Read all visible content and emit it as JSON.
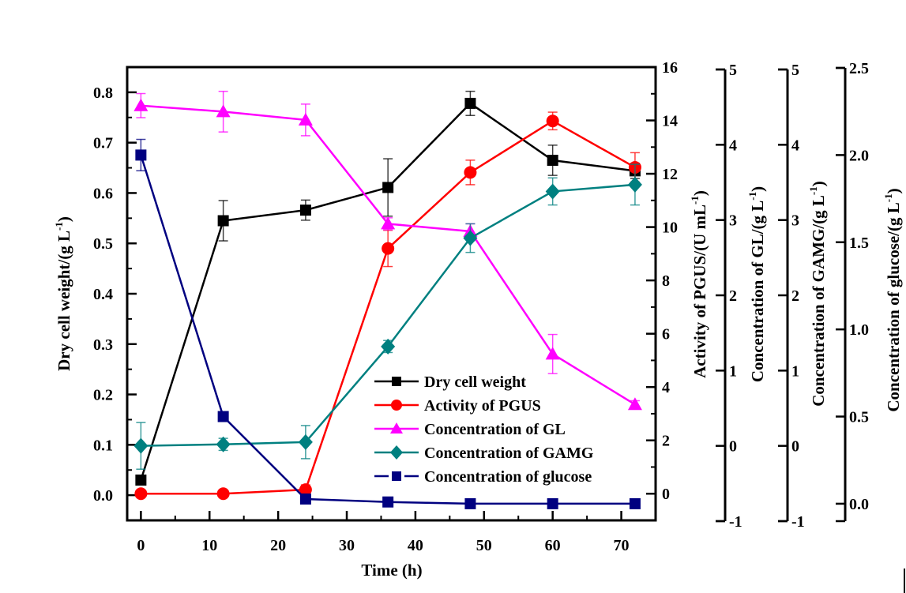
{
  "chart_data": {
    "type": "line",
    "title": "",
    "xlabel": "Time (h)",
    "xlim": [
      -2,
      75
    ],
    "xticks": [
      0,
      10,
      20,
      30,
      40,
      50,
      60,
      70
    ],
    "x": [
      0,
      12,
      24,
      36,
      48,
      60,
      72
    ],
    "grid": false,
    "legend_position": "bottom-center",
    "axes": [
      {
        "id": "dcw",
        "label": "Dry cell weight/(g L",
        "label_sup": "-1",
        "label_end": ")",
        "side": "left",
        "ylim": [
          -0.05,
          0.85
        ],
        "ticks": [
          "0.0",
          "0.1",
          "0.2",
          "0.3",
          "0.4",
          "0.5",
          "0.6",
          "0.7",
          "0.8"
        ],
        "tick_values": [
          0,
          0.1,
          0.2,
          0.3,
          0.4,
          0.5,
          0.6,
          0.7,
          0.8
        ],
        "minor": [
          0.05,
          0.15,
          0.25,
          0.35,
          0.45,
          0.55,
          0.65,
          0.75
        ]
      },
      {
        "id": "pgus",
        "label": "Activity of PGUS/(U mL",
        "label_sup": "-1",
        "label_end": ")",
        "side": "right",
        "ylim": [
          -1,
          16
        ],
        "ticks": [
          "0",
          "2",
          "4",
          "6",
          "8",
          "10",
          "12",
          "14",
          "16"
        ],
        "tick_values": [
          0,
          2,
          4,
          6,
          8,
          10,
          12,
          14,
          16
        ],
        "minor": [
          1,
          3,
          5,
          7,
          9,
          11,
          13,
          15
        ]
      },
      {
        "id": "gl",
        "label": "Concentration of GL/(g L",
        "label_sup": "-1",
        "label_end": ")",
        "side": "right-offset-1",
        "ylim": [
          -1,
          5
        ],
        "ticks": [
          "-1",
          "0",
          "1",
          "2",
          "3",
          "4",
          "5"
        ],
        "tick_values": [
          -1,
          0,
          1,
          2,
          3,
          4,
          5
        ],
        "minor": []
      },
      {
        "id": "gamg",
        "label": "Concentration of GAMG/(g L",
        "label_sup": "-1",
        "label_end": ")",
        "side": "right-offset-2",
        "ylim": [
          -1,
          5
        ],
        "ticks": [
          "-1",
          "0",
          "1",
          "2",
          "3",
          "4",
          "5"
        ],
        "tick_values": [
          -1,
          0,
          1,
          2,
          3,
          4,
          5
        ],
        "minor": []
      },
      {
        "id": "glucose",
        "label": "Concentration of glucose/(g L",
        "label_sup": "-1",
        "label_end": ")",
        "side": "right-offset-3",
        "ylim": [
          -0.1,
          2.5
        ],
        "ticks": [
          "0.0",
          "0.5",
          "1.0",
          "1.5",
          "2.0",
          "2.5"
        ],
        "tick_values": [
          0,
          0.5,
          1.0,
          1.5,
          2.0,
          2.5
        ],
        "minor": []
      }
    ],
    "series": [
      {
        "name": "Dry cell weight",
        "axis": "dcw",
        "color": "#000000",
        "marker": "square",
        "values": [
          0.03,
          0.545,
          0.566,
          0.611,
          0.778,
          0.665,
          0.644
        ],
        "errors": [
          0.0,
          0.04,
          0.02,
          0.057,
          0.024,
          0.03,
          0.015
        ]
      },
      {
        "name": "Activity of PGUS",
        "axis": "pgus",
        "color": "#ff0000",
        "marker": "circle",
        "values": [
          0.0,
          0.0,
          0.15,
          9.2,
          12.05,
          13.98,
          12.24
        ],
        "errors": [
          0.0,
          0.0,
          0.18,
          0.68,
          0.46,
          0.33,
          0.55
        ]
      },
      {
        "name": "Concentration of GL",
        "axis": "gl",
        "color": "#ff00ff",
        "marker": "triangle",
        "values": [
          4.52,
          4.44,
          4.33,
          2.95,
          2.85,
          1.22,
          0.55
        ],
        "errors": [
          0.16,
          0.27,
          0.21,
          0.08,
          0.1,
          0.26,
          0.05
        ]
      },
      {
        "name": "Concentration of GAMG",
        "axis": "gamg",
        "color": "#008080",
        "marker": "diamond",
        "values": [
          0.0,
          0.02,
          0.05,
          1.32,
          2.76,
          3.38,
          3.47
        ],
        "errors": [
          0.31,
          0.08,
          0.22,
          0.08,
          0.19,
          0.18,
          0.27
        ]
      },
      {
        "name": "Concentration of glucose",
        "axis": "glucose",
        "color": "#000080",
        "marker": "square",
        "values": [
          2.0,
          0.5,
          0.027,
          0.01,
          0.0,
          0.0,
          0.0
        ],
        "errors": [
          0.09,
          0.0,
          0.0,
          0.0,
          0.0,
          0.0,
          0.0
        ]
      }
    ]
  }
}
